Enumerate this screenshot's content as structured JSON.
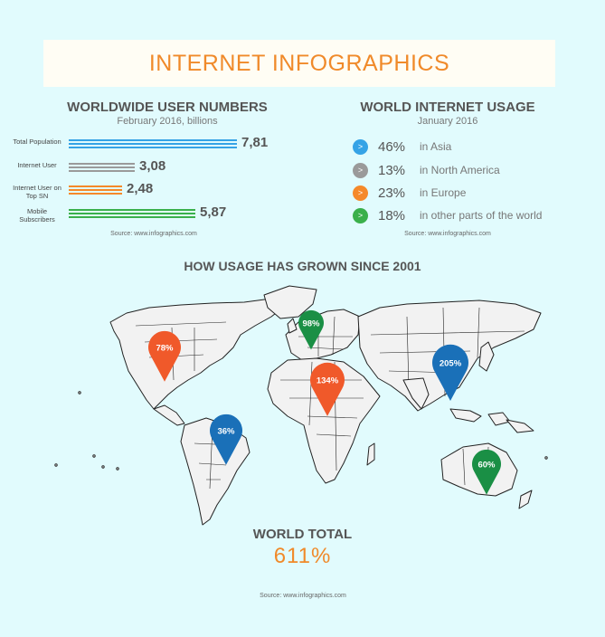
{
  "title": "INTERNET INFOGRAPHICS",
  "colors": {
    "blue": "#35a3e6",
    "gray": "#9a9a9a",
    "orange": "#f5892a",
    "green": "#3ab04b",
    "pin_orange": "#f0592a",
    "pin_blue": "#1a70b8",
    "pin_green": "#1a8f45"
  },
  "users_chart": {
    "title": "WORLDWIDE USER NUMBERS",
    "subtitle": "February 2016, billions",
    "source": "Source: www.infographics.com"
  },
  "usage_chart": {
    "title": "WORLD INTERNET USAGE",
    "subtitle": "January 2016",
    "source": "Source: www.infographics.com",
    "icon_glyph": ">"
  },
  "map": {
    "title": "HOW USAGE HAS GROWN SINCE 2001",
    "total_label": "WORLD TOTAL",
    "total_value": "611%",
    "source": "Source: www.infographics.com"
  },
  "chart_data": [
    {
      "type": "bar",
      "title": "WORLDWIDE USER NUMBERS",
      "subtitle": "February 2016, billions",
      "categories": [
        "Total Population",
        "Internet User",
        "Internet User on Top SN",
        "Mobile Subscribers"
      ],
      "values": [
        7.81,
        3.08,
        2.48,
        5.87
      ],
      "value_labels": [
        "7,81",
        "3,08",
        "2,48",
        "5,87"
      ],
      "bar_colors": [
        "#35a3e6",
        "#9a9a9a",
        "#f5892a",
        "#3ab04b"
      ]
    },
    {
      "type": "pie",
      "title": "WORLD INTERNET USAGE",
      "subtitle": "January 2016",
      "categories": [
        "in Asia",
        "in North America",
        "in Europe",
        "in other parts of the world"
      ],
      "values": [
        46,
        13,
        23,
        18
      ],
      "value_labels": [
        "46%",
        "13%",
        "23%",
        "18%"
      ],
      "colors": [
        "#35a3e6",
        "#9a9a9a",
        "#f5892a",
        "#3ab04b"
      ]
    },
    {
      "type": "scatter",
      "title": "HOW USAGE HAS GROWN SINCE 2001",
      "categories": [
        "North America",
        "Europe",
        "Africa",
        "Asia",
        "South America",
        "Australia"
      ],
      "values": [
        78,
        98,
        134,
        205,
        36,
        60
      ],
      "value_labels": [
        "78%",
        "98%",
        "134%",
        "205%",
        "36%",
        "60%"
      ],
      "pin_colors": [
        "#f0592a",
        "#1a8f45",
        "#f0592a",
        "#1a70b8",
        "#1a70b8",
        "#1a8f45"
      ]
    }
  ]
}
